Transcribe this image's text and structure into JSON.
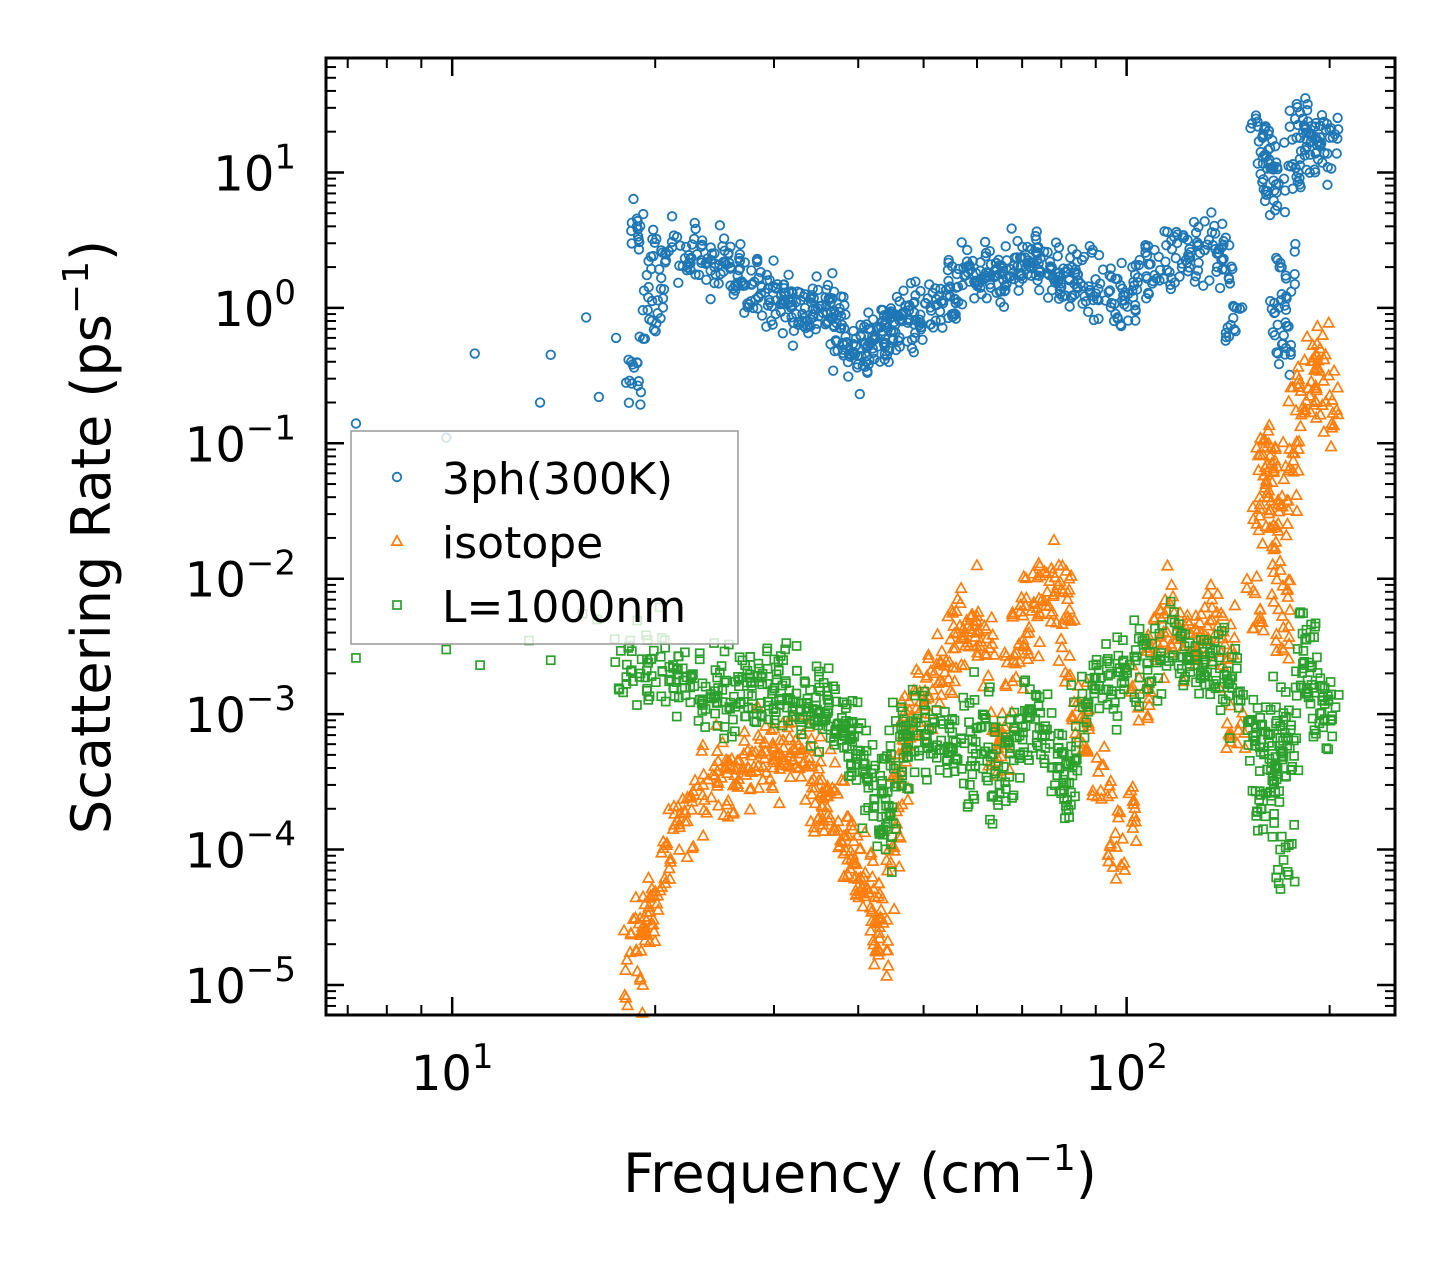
{
  "chart_data": {
    "type": "scatter",
    "title": "",
    "xlabel": {
      "main": "Frequency (cm",
      "sup": "−1",
      "tail": ")"
    },
    "ylabel": {
      "main": "Scattering Rate (ps",
      "sup": "−1",
      "tail": ")"
    },
    "xscale": "log",
    "yscale": "log",
    "xlim": [
      6.5,
      250
    ],
    "ylim": [
      6e-06,
      70
    ],
    "x_ticks": [
      {
        "value": 10,
        "base": "10",
        "exp": "1"
      },
      {
        "value": 100,
        "base": "10",
        "exp": "2"
      }
    ],
    "y_ticks": [
      {
        "value": 1e-05,
        "base": "10",
        "exp": "−5"
      },
      {
        "value": 0.0001,
        "base": "10",
        "exp": "−4"
      },
      {
        "value": 0.001,
        "base": "10",
        "exp": "−3"
      },
      {
        "value": 0.01,
        "base": "10",
        "exp": "−2"
      },
      {
        "value": 0.1,
        "base": "10",
        "exp": "−1"
      },
      {
        "value": 1,
        "base": "10",
        "exp": "0"
      },
      {
        "value": 10,
        "base": "10",
        "exp": "1"
      }
    ],
    "legend_position": "center-left",
    "grid": false,
    "series": [
      {
        "name": "3ph(300K)",
        "marker": "circle",
        "color": "#1f77b4",
        "anchors": [
          [
            7.2,
            0.14
          ],
          [
            9.8,
            0.11
          ],
          [
            10.8,
            0.46
          ],
          [
            13.5,
            0.2
          ],
          [
            14,
            0.45
          ],
          [
            15.8,
            0.85
          ],
          [
            16.5,
            0.22
          ],
          [
            17.5,
            0.6
          ],
          [
            18.6,
            0.3
          ],
          [
            18.8,
            3.5
          ],
          [
            19.5,
            0.9
          ],
          [
            20,
            1.5
          ],
          [
            20.5,
            2.6
          ],
          [
            22,
            2.8
          ],
          [
            23,
            2.4
          ],
          [
            24,
            2.0
          ],
          [
            25,
            2.2
          ],
          [
            26,
            1.9
          ],
          [
            27,
            1.7
          ],
          [
            28,
            1.6
          ],
          [
            29,
            1.3
          ],
          [
            30,
            1.2
          ],
          [
            31,
            1.1
          ],
          [
            32,
            1.0
          ],
          [
            33,
            0.95
          ],
          [
            34,
            1.0
          ],
          [
            35,
            1.1
          ],
          [
            36,
            0.95
          ],
          [
            37,
            0.9
          ],
          [
            38,
            0.6
          ],
          [
            39,
            0.45
          ],
          [
            40,
            0.5
          ],
          [
            41,
            0.55
          ],
          [
            42,
            0.6
          ],
          [
            43,
            0.6
          ],
          [
            44,
            0.7
          ],
          [
            45,
            0.75
          ],
          [
            46,
            0.8
          ],
          [
            47,
            0.8
          ],
          [
            48,
            0.85
          ],
          [
            50,
            0.9
          ],
          [
            52,
            1.0
          ],
          [
            54,
            1.1
          ],
          [
            56,
            1.3
          ],
          [
            58,
            1.6
          ],
          [
            60,
            1.8
          ],
          [
            62,
            1.6
          ],
          [
            64,
            1.5
          ],
          [
            66,
            1.9
          ],
          [
            68,
            2.0
          ],
          [
            70,
            2.2
          ],
          [
            72,
            2.4
          ],
          [
            75,
            2.2
          ],
          [
            78,
            1.9
          ],
          [
            80,
            1.7
          ],
          [
            82,
            1.5
          ],
          [
            85,
            1.6
          ],
          [
            88,
            1.5
          ],
          [
            92,
            1.4
          ],
          [
            96,
            1.1
          ],
          [
            100,
            1.2
          ],
          [
            105,
            1.6
          ],
          [
            110,
            2.0
          ],
          [
            115,
            2.3
          ],
          [
            120,
            2.5
          ],
          [
            125,
            2.5
          ],
          [
            130,
            2.7
          ],
          [
            135,
            2.8
          ],
          [
            140,
            2.2
          ],
          [
            145,
            0.85
          ],
          [
            158,
            22
          ],
          [
            160,
            15
          ],
          [
            163,
            10
          ],
          [
            166,
            6
          ],
          [
            168,
            1.0
          ],
          [
            170,
            0.5
          ],
          [
            172,
            2.0
          ],
          [
            175,
            10
          ],
          [
            180,
            25
          ],
          [
            185,
            20
          ],
          [
            190,
            15
          ],
          [
            195,
            14
          ],
          [
            200,
            20
          ]
        ],
        "spread": 0.16
      },
      {
        "name": "isotope",
        "marker": "triangle",
        "color": "#ff7f0e",
        "anchors": [
          [
            18.6,
            1.2e-05
          ],
          [
            19,
            2.5e-05
          ],
          [
            19.5,
            3e-05
          ],
          [
            20,
            5e-05
          ],
          [
            21,
            0.0001
          ],
          [
            22,
            0.00015
          ],
          [
            23,
            0.0002
          ],
          [
            24,
            0.0003
          ],
          [
            25,
            0.00032
          ],
          [
            26,
            0.00036
          ],
          [
            27,
            0.0004
          ],
          [
            28,
            0.00045
          ],
          [
            29,
            0.0005
          ],
          [
            30,
            0.00048
          ],
          [
            31,
            0.0005
          ],
          [
            32,
            0.00055
          ],
          [
            33,
            0.0005
          ],
          [
            34,
            0.0004
          ],
          [
            35,
            0.0003
          ],
          [
            36,
            0.00025
          ],
          [
            37,
            0.0002
          ],
          [
            38,
            0.00015
          ],
          [
            39,
            0.0001
          ],
          [
            40,
            8e-05
          ],
          [
            41,
            6e-05
          ],
          [
            42,
            4e-05
          ],
          [
            43,
            2e-05
          ],
          [
            44,
            3e-05
          ],
          [
            45,
            0.0001
          ],
          [
            46,
            0.0003
          ],
          [
            47,
            0.0006
          ],
          [
            48,
            0.0009
          ],
          [
            50,
            0.0012
          ],
          [
            52,
            0.0018
          ],
          [
            54,
            0.0025
          ],
          [
            56,
            0.0035
          ],
          [
            58,
            0.0045
          ],
          [
            60,
            0.005
          ],
          [
            62,
            0.003
          ],
          [
            64,
            0.0005
          ],
          [
            66,
            0.0006
          ],
          [
            68,
            0.002
          ],
          [
            70,
            0.004
          ],
          [
            72,
            0.006
          ],
          [
            75,
            0.008
          ],
          [
            78,
            0.01
          ],
          [
            80,
            0.009
          ],
          [
            82,
            0.003
          ],
          [
            85,
            0.001
          ],
          [
            88,
            0.0008
          ],
          [
            92,
            0.0003
          ],
          [
            96,
            0.0001
          ],
          [
            100,
            0.0002
          ],
          [
            105,
            0.0015
          ],
          [
            110,
            0.003
          ],
          [
            115,
            0.006
          ],
          [
            120,
            0.004
          ],
          [
            125,
            0.003
          ],
          [
            130,
            0.004
          ],
          [
            135,
            0.005
          ],
          [
            140,
            0.003
          ],
          [
            145,
            0.00075
          ],
          [
            155,
            0.007
          ],
          [
            158,
            0.03
          ],
          [
            160,
            0.06
          ],
          [
            163,
            0.08
          ],
          [
            166,
            0.05
          ],
          [
            168,
            0.03
          ],
          [
            170,
            0.01
          ],
          [
            172,
            0.004
          ],
          [
            175,
            0.06
          ],
          [
            180,
            0.15
          ],
          [
            185,
            0.25
          ],
          [
            190,
            0.3
          ],
          [
            195,
            0.4
          ],
          [
            200,
            0.15
          ]
        ],
        "spread": 0.2
      },
      {
        "name": "L=1000nm",
        "marker": "square",
        "color": "#2ca02c",
        "anchors": [
          [
            7.2,
            0.0026
          ],
          [
            9.8,
            0.003
          ],
          [
            11,
            0.0023
          ],
          [
            13,
            0.0035
          ],
          [
            14,
            0.0025
          ],
          [
            15.6,
            0.0055
          ],
          [
            16.4,
            0.005
          ],
          [
            18,
            0.0027
          ],
          [
            19,
            0.0025
          ],
          [
            20,
            0.0022
          ],
          [
            21,
            0.002
          ],
          [
            22,
            0.0017
          ],
          [
            23,
            0.0015
          ],
          [
            24,
            0.0016
          ],
          [
            25,
            0.0014
          ],
          [
            26,
            0.0015
          ],
          [
            27,
            0.0017
          ],
          [
            28,
            0.0016
          ],
          [
            29,
            0.0015
          ],
          [
            30,
            0.0018
          ],
          [
            31,
            0.0013
          ],
          [
            32,
            0.0015
          ],
          [
            33,
            0.0012
          ],
          [
            34,
            0.001
          ],
          [
            35,
            0.0011
          ],
          [
            36,
            0.0012
          ],
          [
            37,
            0.0009
          ],
          [
            38,
            0.0008
          ],
          [
            39,
            0.0007
          ],
          [
            40,
            0.0005
          ],
          [
            41,
            0.0004
          ],
          [
            42,
            0.0003
          ],
          [
            43,
            0.0002
          ],
          [
            44,
            0.00015
          ],
          [
            45,
            0.0003
          ],
          [
            46,
            0.0005
          ],
          [
            47,
            0.0006
          ],
          [
            48,
            0.0007
          ],
          [
            50,
            0.0008
          ],
          [
            52,
            0.0007
          ],
          [
            54,
            0.0006
          ],
          [
            56,
            0.0005
          ],
          [
            58,
            0.0004
          ],
          [
            60,
            0.0007
          ],
          [
            62,
            0.0008
          ],
          [
            64,
            0.0003
          ],
          [
            66,
            0.0004
          ],
          [
            68,
            0.0006
          ],
          [
            70,
            0.0008
          ],
          [
            72,
            0.001
          ],
          [
            75,
            0.0009
          ],
          [
            78,
            0.0005
          ],
          [
            80,
            0.0004
          ],
          [
            82,
            0.0003
          ],
          [
            85,
            0.0008
          ],
          [
            88,
            0.0012
          ],
          [
            92,
            0.0016
          ],
          [
            96,
            0.002
          ],
          [
            100,
            0.0022
          ],
          [
            105,
            0.0025
          ],
          [
            110,
            0.0027
          ],
          [
            115,
            0.003
          ],
          [
            120,
            0.0028
          ],
          [
            125,
            0.0026
          ],
          [
            130,
            0.0025
          ],
          [
            135,
            0.0028
          ],
          [
            140,
            0.002
          ],
          [
            145,
            0.0012
          ],
          [
            156,
            0.0008
          ],
          [
            158,
            0.0005
          ],
          [
            160,
            0.0002
          ],
          [
            163,
            0.0003
          ],
          [
            166,
            0.0008
          ],
          [
            168,
            0.0006
          ],
          [
            170,
            0.0004
          ],
          [
            172,
            0.0001
          ],
          [
            175,
            0.0006
          ],
          [
            180,
            0.002
          ],
          [
            185,
            0.003
          ],
          [
            190,
            0.002
          ],
          [
            195,
            0.0009
          ],
          [
            200,
            0.0012
          ]
        ],
        "spread": 0.22
      }
    ]
  }
}
